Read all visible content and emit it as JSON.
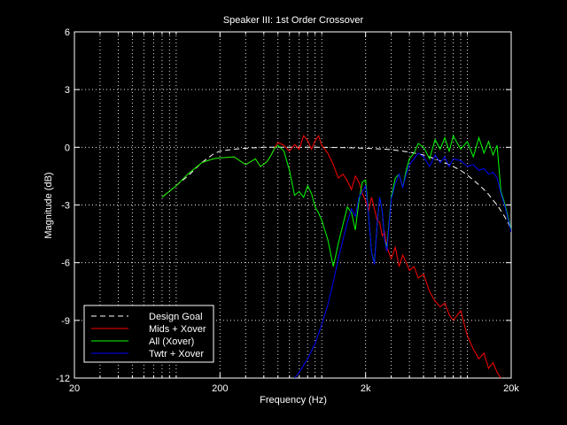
{
  "chart_data": {
    "type": "line",
    "title": "Speaker III: 1st Order Crossover",
    "xlabel": "Frequency (Hz)",
    "ylabel": "Magnitude (dB)",
    "x_scale": "log",
    "xlim": [
      20,
      20000
    ],
    "ylim": [
      -12,
      6
    ],
    "x_ticks": [
      20,
      200,
      2000,
      20000
    ],
    "x_tick_labels": [
      "20",
      "200",
      "2k",
      "20k"
    ],
    "y_ticks": [
      -12,
      -9,
      -6,
      -3,
      0,
      3,
      6
    ],
    "y_tick_labels": [
      "-12",
      "-9",
      "-6",
      "-3",
      "0",
      "3",
      "6"
    ],
    "grid": true,
    "legend_position": "bottom-left",
    "colors": {
      "background": "#000000",
      "axes": "#ffffff",
      "grid": "#ffffff"
    },
    "series": [
      {
        "name": "Design Goal",
        "color": "#ffffff",
        "dash": "dashed",
        "x": [
          80,
          120,
          150,
          180,
          200,
          250,
          300,
          400,
          500,
          700,
          1000,
          1500,
          2000,
          3000,
          4000,
          5000,
          6000,
          7000,
          8000,
          9000,
          10000,
          11000,
          12000,
          13000,
          14000,
          15000,
          16000,
          17000,
          18000,
          19000,
          20000
        ],
        "y": [
          -2.6,
          -1.5,
          -0.8,
          -0.35,
          -0.2,
          -0.1,
          -0.05,
          0,
          0,
          0,
          0,
          -0.02,
          -0.05,
          -0.12,
          -0.25,
          -0.4,
          -0.6,
          -0.8,
          -1.0,
          -1.2,
          -1.45,
          -1.7,
          -1.95,
          -2.2,
          -2.45,
          -2.75,
          -3.0,
          -3.3,
          -3.6,
          -3.9,
          -4.3
        ]
      },
      {
        "name": "Mids + Xover",
        "color": "#ff0000",
        "dash": "solid",
        "x": [
          80,
          100,
          120,
          150,
          180,
          200,
          250,
          300,
          350,
          380,
          420,
          450,
          470,
          500,
          550,
          600,
          650,
          700,
          750,
          800,
          850,
          900,
          950,
          1000,
          1100,
          1200,
          1300,
          1400,
          1500,
          1600,
          1700,
          1800,
          1900,
          2000,
          2100,
          2200,
          2300,
          2400,
          2500,
          2600,
          2700,
          2800,
          3000,
          3200,
          3400,
          3600,
          3800,
          4000,
          4300,
          4600,
          5000,
          5500,
          6000,
          6500,
          7000,
          7500,
          8000,
          9000,
          10000,
          11000,
          12000,
          13000,
          14000,
          15000,
          16000,
          17000
        ],
        "y": [
          -2.6,
          -2.0,
          -1.4,
          -0.8,
          -0.6,
          -0.55,
          -0.5,
          -0.9,
          -0.6,
          -1.0,
          -0.75,
          -0.4,
          -0.1,
          0.25,
          0.1,
          -0.2,
          0.15,
          -0.1,
          0.6,
          0.35,
          -0.1,
          0.35,
          0.6,
          0.1,
          -0.3,
          -0.9,
          -1.6,
          -1.4,
          -1.75,
          -2.2,
          -1.5,
          -1.8,
          -2.4,
          -2.8,
          -3.3,
          -2.6,
          -3.2,
          -3.8,
          -3.9,
          -4.6,
          -4.4,
          -5.2,
          -5.8,
          -5.2,
          -6.2,
          -5.6,
          -6.0,
          -6.4,
          -6.2,
          -6.8,
          -6.6,
          -7.5,
          -8.0,
          -8.3,
          -8.1,
          -8.7,
          -9.0,
          -8.5,
          -9.8,
          -10.5,
          -11.0,
          -10.7,
          -11.5,
          -11.2,
          -11.7,
          -12.0
        ]
      },
      {
        "name": "All (Xover)",
        "color": "#00ff00",
        "dash": "solid",
        "x": [
          80,
          100,
          120,
          150,
          180,
          200,
          250,
          300,
          350,
          380,
          420,
          450,
          470,
          500,
          550,
          600,
          650,
          700,
          750,
          800,
          850,
          900,
          950,
          1000,
          1100,
          1200,
          1300,
          1400,
          1500,
          1600,
          1700,
          1800,
          1900,
          2000,
          2100,
          2200,
          2300,
          2400,
          2500,
          2600,
          2700,
          2800,
          3000,
          3200,
          3400,
          3600,
          3800,
          4000,
          4300,
          4600,
          5000,
          5500,
          6000,
          6500,
          7000,
          7500,
          8000,
          9000,
          10000,
          11000,
          12000,
          13000,
          14000,
          15000,
          16000,
          17000,
          18000,
          19000,
          20000
        ],
        "y": [
          -2.6,
          -2.0,
          -1.4,
          -0.8,
          -0.6,
          -0.55,
          -0.5,
          -0.9,
          -0.6,
          -1.0,
          -0.75,
          -0.4,
          -0.1,
          0.1,
          -0.2,
          -1.2,
          -2.5,
          -2.3,
          -2.6,
          -2.0,
          -2.4,
          -3.1,
          -3.4,
          -3.8,
          -4.8,
          -6.2,
          -5.0,
          -4.0,
          -3.1,
          -3.4,
          -4.3,
          -2.8,
          -1.8,
          -1.7,
          -3.6,
          -5.5,
          -6.0,
          -4.0,
          -2.6,
          -3.3,
          -4.8,
          -5.2,
          -2.6,
          -1.6,
          -1.4,
          -2.1,
          -1.2,
          -0.6,
          -0.3,
          0.2,
          0.0,
          -0.6,
          0.4,
          -0.1,
          0.5,
          -0.2,
          0.6,
          -0.1,
          0.3,
          -0.5,
          0.5,
          -0.3,
          0.3,
          -0.4,
          0.1,
          -2.3,
          -2.9,
          -3.6,
          -4.3
        ]
      },
      {
        "name": "Twtr + Xover",
        "color": "#0000ff",
        "dash": "solid",
        "x": [
          650,
          700,
          800,
          900,
          1000,
          1100,
          1200,
          1300,
          1400,
          1500,
          1600,
          1700,
          1800,
          1900,
          2000,
          2100,
          2200,
          2300,
          2400,
          2500,
          2600,
          2700,
          2800,
          3000,
          3200,
          3400,
          3600,
          3800,
          4000,
          4300,
          4600,
          5000,
          5500,
          6000,
          6500,
          7000,
          7500,
          8000,
          9000,
          10000,
          11000,
          12000,
          13000,
          14000,
          15000,
          16000,
          17000,
          18000,
          19000,
          20000
        ],
        "y": [
          -12.0,
          -11.7,
          -11.0,
          -10.2,
          -9.2,
          -8.2,
          -7.0,
          -5.8,
          -4.8,
          -3.9,
          -3.2,
          -3.6,
          -2.6,
          -2.3,
          -2.0,
          -3.6,
          -5.5,
          -6.1,
          -4.0,
          -2.6,
          -3.3,
          -4.8,
          -5.4,
          -2.7,
          -1.9,
          -1.4,
          -2.1,
          -1.4,
          -0.9,
          -0.6,
          -0.3,
          -0.5,
          -1.0,
          -0.4,
          -0.8,
          -0.5,
          -1.0,
          -0.6,
          -0.7,
          -1.0,
          -0.9,
          -1.2,
          -1.1,
          -1.4,
          -1.3,
          -1.6,
          -2.4,
          -3.0,
          -3.7,
          -4.4
        ]
      }
    ]
  }
}
